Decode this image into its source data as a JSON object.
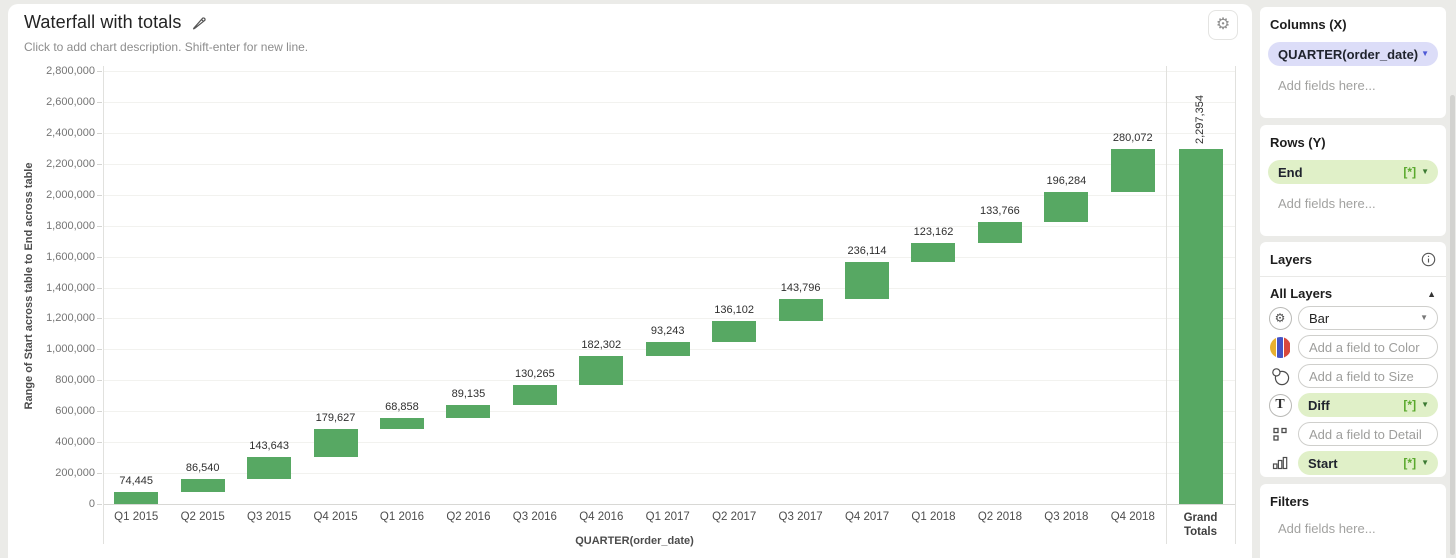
{
  "chart": {
    "title": "Waterfall with totals",
    "description_placeholder": "Click to add chart description. Shift-enter for new line."
  },
  "chart_data": {
    "type": "bar",
    "subtype": "waterfall",
    "title": "Waterfall with totals",
    "categories": [
      "Q1 2015",
      "Q2 2015",
      "Q3 2015",
      "Q4 2015",
      "Q1 2016",
      "Q2 2016",
      "Q3 2016",
      "Q4 2016",
      "Q1 2017",
      "Q2 2017",
      "Q3 2017",
      "Q4 2017",
      "Q1 2018",
      "Q2 2018",
      "Q3 2018",
      "Q4 2018"
    ],
    "values": [
      74445,
      86540,
      143643,
      179627,
      68858,
      89135,
      130265,
      182302,
      93243,
      136102,
      143796,
      236114,
      123162,
      133766,
      196284,
      280072
    ],
    "grand_total_label": "Grand Totals",
    "grand_total": 2297354,
    "xlabel": "QUARTER(order_date)",
    "ylabel": "Range of Start across table to End across table",
    "ylim": [
      0,
      2800000
    ],
    "ytick_step": 200000,
    "grid": true,
    "bar_color": "#57a863"
  },
  "icons": {
    "settings_glyph": "⚙",
    "caret_down": "▼",
    "caret_up": "▲"
  },
  "sidebar": {
    "columns": {
      "heading": "Columns (X)",
      "field": "QUARTER(order_date)",
      "placeholder": "Add fields here..."
    },
    "rows": {
      "heading": "Rows (Y)",
      "field": "End",
      "badge": "[*]",
      "placeholder": "Add fields here..."
    },
    "layers": {
      "heading": "Layers",
      "all_layers_label": "All Layers",
      "mark_type": "Bar",
      "color_placeholder": "Add a field to Color",
      "size_placeholder": "Add a field to Size",
      "text_field": "Diff",
      "text_badge": "[*]",
      "detail_placeholder": "Add a field to Detail",
      "tooltip_field": "Start",
      "tooltip_badge": "[*]"
    },
    "filters": {
      "heading": "Filters",
      "placeholder": "Add fields here..."
    }
  }
}
